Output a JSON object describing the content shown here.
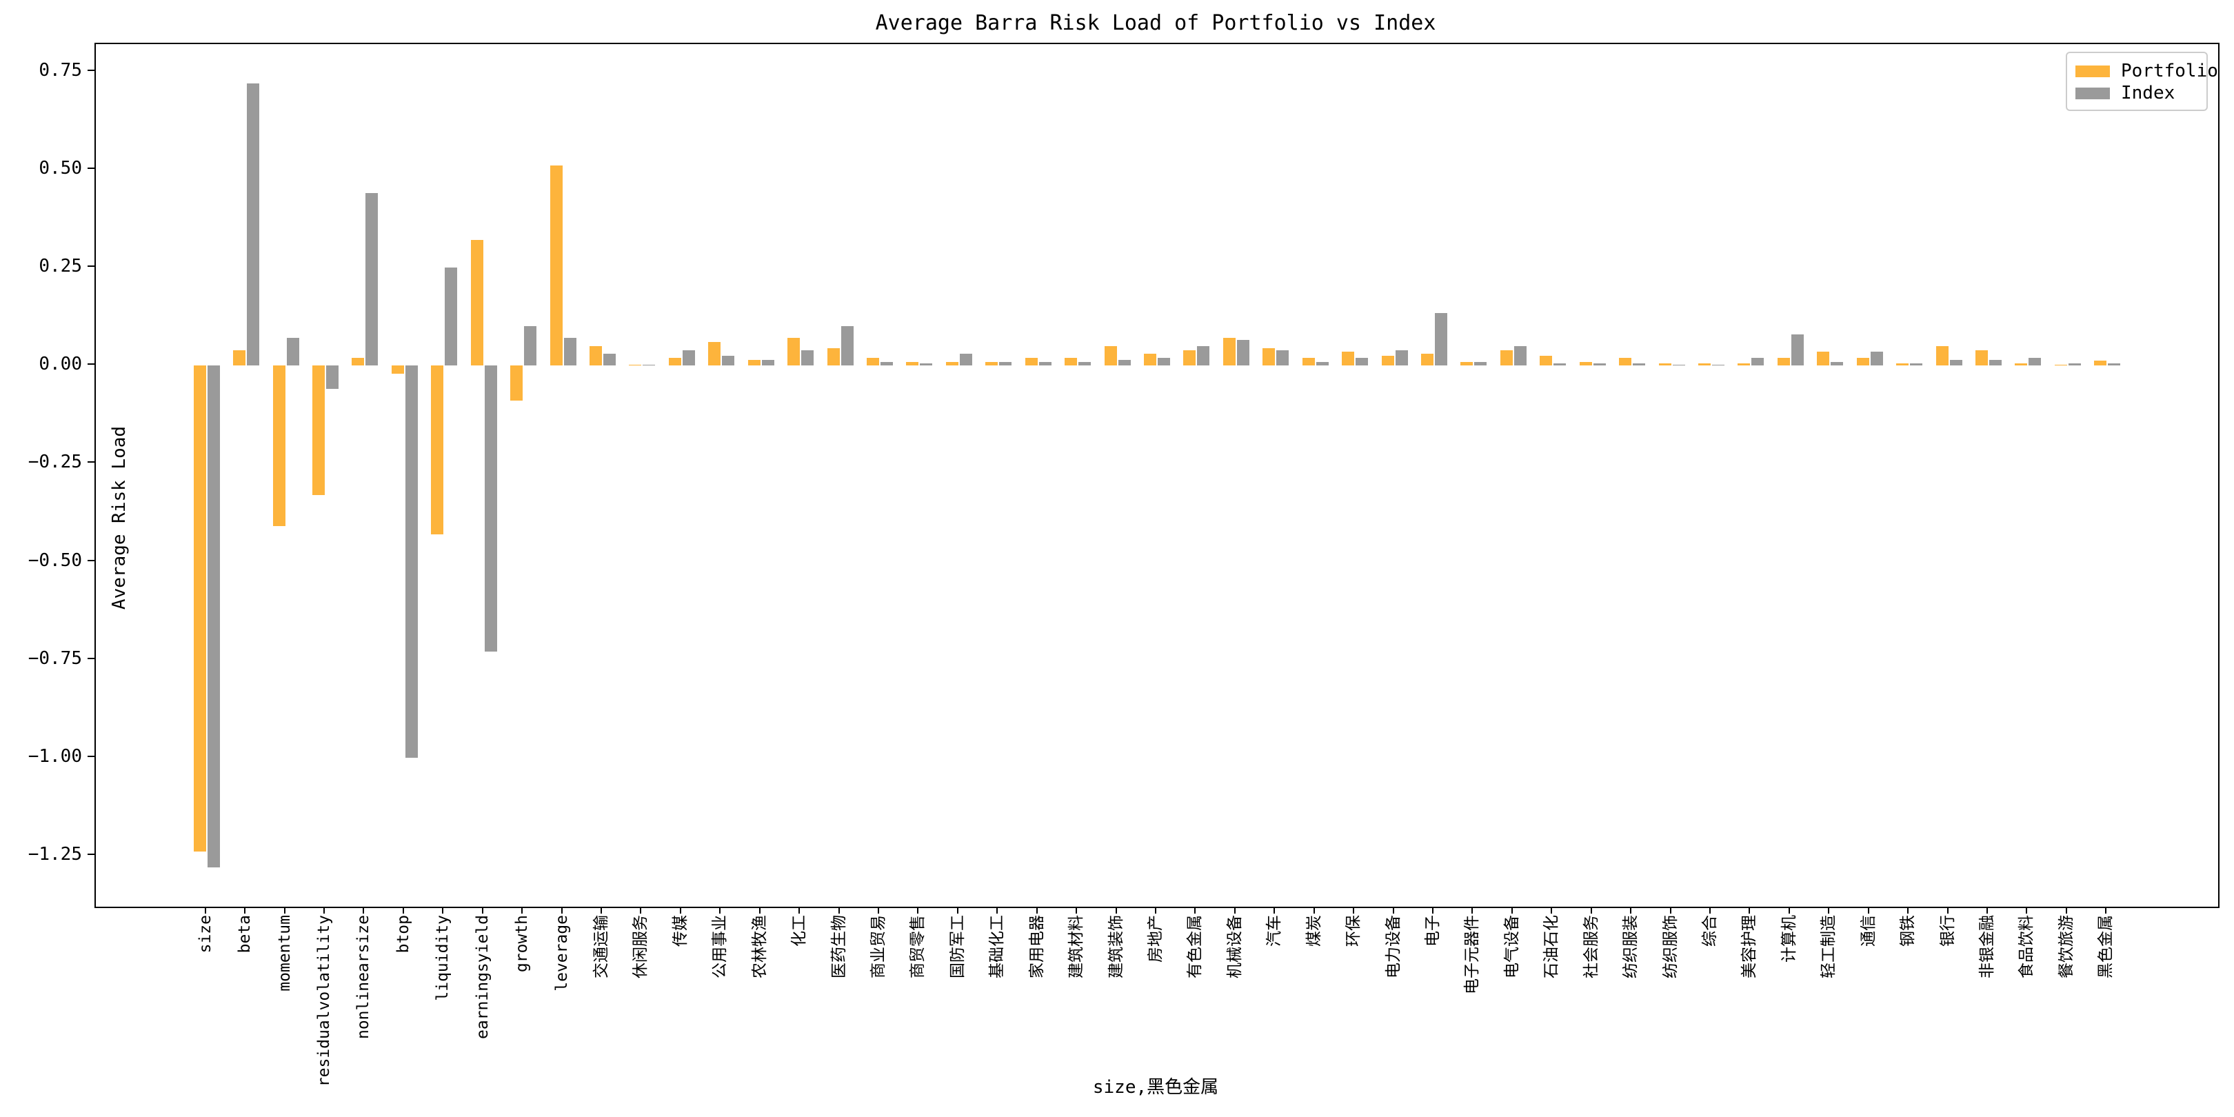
{
  "figure": {
    "title": "Average Barra Risk Load of Portfolio vs Index",
    "x_axis_label": "size,黑色金属",
    "y_axis_label": "Average Risk Load"
  },
  "legend": {
    "position": "upper right",
    "items": [
      {
        "label": "Portfolio",
        "color": "#FDB43C"
      },
      {
        "label": "Index",
        "color": "#9A9A9A"
      }
    ]
  },
  "chart_data": {
    "type": "bar",
    "title": "Average Barra Risk Load of Portfolio vs Index",
    "xlabel": "size,黑色金属",
    "ylabel": "Average Risk Load",
    "ylim": [
      -1.38,
      0.82
    ],
    "yticks": [
      0.75,
      0.5,
      0.25,
      0,
      -0.25,
      -0.5,
      -0.75,
      -1,
      -1.25
    ],
    "grid": false,
    "legend_position": "upper right",
    "categories": [
      "size",
      "beta",
      "momentum",
      "residualvolatility",
      "nonlinearsize",
      "btop",
      "liquidity",
      "earningsyield",
      "growth",
      "leverage",
      "交通运输",
      "休闲服务",
      "传媒",
      "公用事业",
      "农林牧渔",
      "化工",
      "医药生物",
      "商业贸易",
      "商贸零售",
      "国防军工",
      "基础化工",
      "家用电器",
      "建筑材料",
      "建筑装饰",
      "房地产",
      "有色金属",
      "机械设备",
      "汽车",
      "煤炭",
      "环保",
      "电力设备",
      "电子",
      "电子元器件",
      "电气设备",
      "石油石化",
      "社会服务",
      "纺织服装",
      "纺织服饰",
      "综合",
      "美容护理",
      "计算机",
      "轻工制造",
      "通信",
      "钢铁",
      "银行",
      "非银金融",
      "食品饮料",
      "餐饮旅游",
      "黑色金属"
    ],
    "series": [
      {
        "name": "Portfolio",
        "color": "#FDB43C",
        "values": [
          -1.24,
          0.04,
          -0.41,
          -0.33,
          0.02,
          -0.02,
          -0.43,
          0.32,
          -0.09,
          0.51,
          0.05,
          0.003,
          0.02,
          0.06,
          0.015,
          0.07,
          0.045,
          0.02,
          0.01,
          0.01,
          0.01,
          0.02,
          0.02,
          0.05,
          0.03,
          0.04,
          0.07,
          0.045,
          0.02,
          0.035,
          0.025,
          0.03,
          0.01,
          0.04,
          0.025,
          0.01,
          0.02,
          0.005,
          0.005,
          0.005,
          0.02,
          0.035,
          0.02,
          0.005,
          0.05,
          0.04,
          0.005,
          0.002,
          0.013
        ]
      },
      {
        "name": "Index",
        "color": "#9A9A9A",
        "values": [
          -1.28,
          0.72,
          0.07,
          -0.06,
          0.44,
          -1.0,
          0.25,
          -0.73,
          0.1,
          0.07,
          0.03,
          0.002,
          0.04,
          0.025,
          0.015,
          0.04,
          0.1,
          0.01,
          0.005,
          0.03,
          0.01,
          0.01,
          0.01,
          0.015,
          0.02,
          0.05,
          0.065,
          0.04,
          0.01,
          0.02,
          0.04,
          0.135,
          0.01,
          0.05,
          0.005,
          0.005,
          0.005,
          0.002,
          0.002,
          0.02,
          0.08,
          0.01,
          0.035,
          0.005,
          0.015,
          0.015,
          0.02,
          0.005,
          0.005
        ]
      }
    ]
  }
}
